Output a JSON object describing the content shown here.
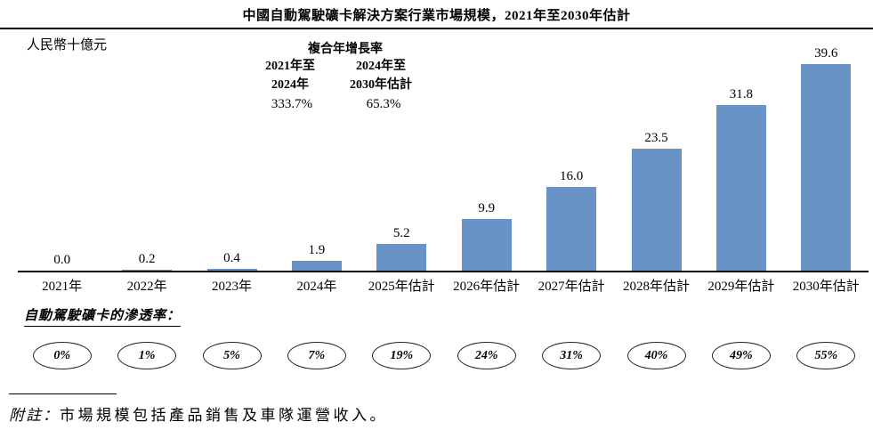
{
  "title": "中國自動駕駛礦卡解決方案行業市場規模，2021年至2030年估計",
  "unit_label": "人民幣十億元",
  "cagr": {
    "title": "複合年增長率",
    "col1_line1": "2021年至",
    "col1_line2": "2024年",
    "col1_value": "333.7%",
    "col2_line1": "2024年至",
    "col2_line2": "2030年估計",
    "col2_value": "65.3%"
  },
  "chart_data": {
    "type": "bar",
    "title": "中國自動駕駛礦卡解決方案行業市場規模，2021年至2030年估計",
    "ylabel": "人民幣十億元",
    "xlabel": "",
    "ylim": [
      0,
      40
    ],
    "grid": false,
    "legend": "none",
    "bar_color": "#6993c6",
    "categories": [
      "2021年",
      "2022年",
      "2023年",
      "2024年",
      "2025年估計",
      "2026年估計",
      "2027年估計",
      "2028年估計",
      "2029年估計",
      "2030年估計"
    ],
    "values": [
      0.0,
      0.2,
      0.4,
      1.9,
      5.2,
      9.9,
      16.0,
      23.5,
      31.8,
      39.6
    ],
    "value_labels": [
      "0.0",
      "0.2",
      "0.4",
      "1.9",
      "5.2",
      "9.9",
      "16.0",
      "23.5",
      "31.8",
      "39.6"
    ],
    "penetration": {
      "label": "自動駕駛礦卡的滲透率：",
      "values": [
        "0%",
        "1%",
        "5%",
        "7%",
        "19%",
        "24%",
        "31%",
        "40%",
        "49%",
        "55%"
      ]
    }
  },
  "footnote": {
    "label": "附註：",
    "text": "市場規模包括產品銷售及車隊運營收入。"
  }
}
